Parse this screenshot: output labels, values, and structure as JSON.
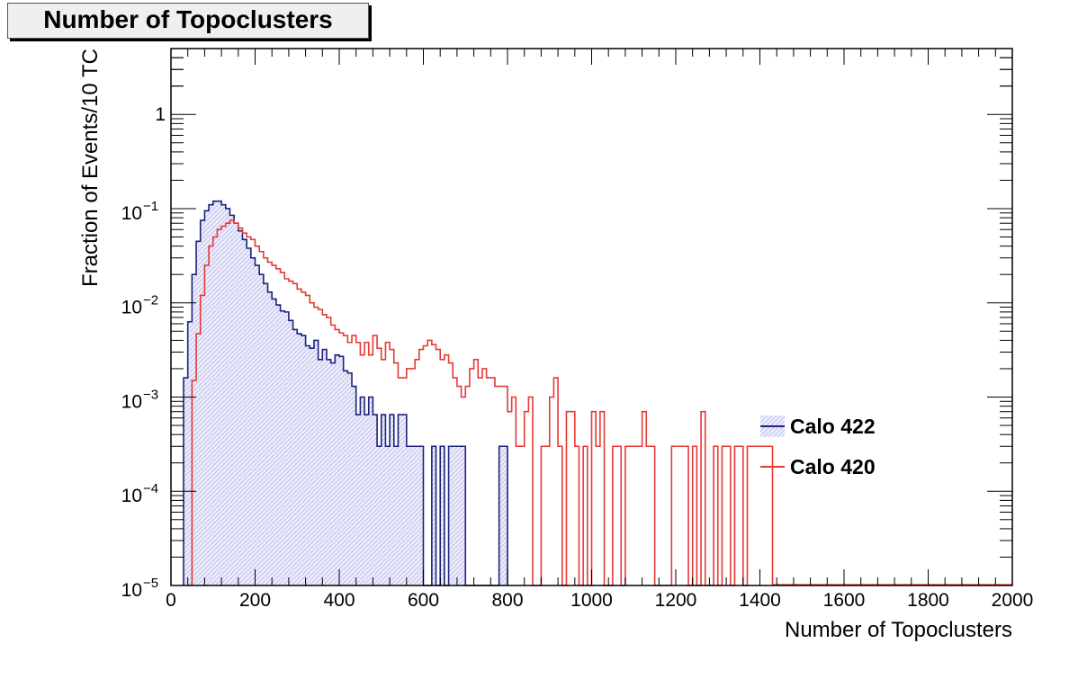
{
  "chart_data": {
    "type": "histogram",
    "title": "Number of Topoclusters",
    "xlabel": "Number of Topoclusters",
    "ylabel": "Fraction of Events/10 TC",
    "xlim": [
      0,
      2000
    ],
    "ylim": [
      1e-05,
      5
    ],
    "yscale": "log",
    "bin_width": 10,
    "grid": false,
    "legend_position": "right",
    "x_ticks": [
      0,
      200,
      400,
      600,
      800,
      1000,
      1200,
      1400,
      1600,
      1800,
      2000
    ],
    "y_ticks": [
      {
        "value": 1,
        "label": "1",
        "exp": ""
      },
      {
        "value": 0.1,
        "label": "10",
        "exp": "−1"
      },
      {
        "value": 0.01,
        "label": "10",
        "exp": "−2"
      },
      {
        "value": 0.001,
        "label": "10",
        "exp": "−3"
      },
      {
        "value": 0.0001,
        "label": "10",
        "exp": "−4"
      },
      {
        "value": 1e-05,
        "label": "10",
        "exp": "−5"
      }
    ],
    "series": [
      {
        "name": "Calo 422",
        "color": "#1a237e",
        "fill": "#dcdcf5",
        "x_start": 30,
        "values": [
          0.0016,
          0.0063,
          0.02,
          0.045,
          0.075,
          0.095,
          0.11,
          0.12,
          0.12,
          0.11,
          0.1,
          0.085,
          0.07,
          0.058,
          0.047,
          0.038,
          0.03,
          0.025,
          0.02,
          0.016,
          0.013,
          0.011,
          0.0095,
          0.0082,
          0.008,
          0.0065,
          0.0052,
          0.0047,
          0.0045,
          0.0035,
          0.0033,
          0.004,
          0.0025,
          0.0032,
          0.0025,
          0.0023,
          0.0028,
          0.0027,
          0.0019,
          0.0018,
          0.0013,
          0.00065,
          0.001,
          0.00065,
          0.001,
          0.00065,
          0.0003,
          0.00065,
          0.0003,
          0.00065,
          0.0003,
          0.00065,
          0.00065,
          0.0003,
          0.0003,
          0.0003,
          0.0003,
          1e-05,
          1e-05,
          0.0003,
          1e-05,
          0.0003,
          1e-05,
          0.0003,
          0.0003,
          0.0003,
          0.0003,
          1e-05,
          1e-05,
          1e-05,
          1e-05,
          1e-05,
          1e-05,
          1e-05,
          1e-05,
          0.0003,
          0.0003
        ]
      },
      {
        "name": "Calo 420",
        "color": "#e53935",
        "fill": "none",
        "x_start": 40,
        "values": [
          1e-05,
          0.0015,
          0.0047,
          0.012,
          0.025,
          0.04,
          0.05,
          0.06,
          0.065,
          0.07,
          0.075,
          0.07,
          0.062,
          0.055,
          0.05,
          0.047,
          0.04,
          0.035,
          0.03,
          0.027,
          0.025,
          0.023,
          0.021,
          0.018,
          0.017,
          0.016,
          0.014,
          0.013,
          0.012,
          0.01,
          0.009,
          0.0085,
          0.0075,
          0.007,
          0.0058,
          0.0052,
          0.0048,
          0.0045,
          0.0038,
          0.0045,
          0.0038,
          0.0028,
          0.0038,
          0.0028,
          0.0045,
          0.0033,
          0.0025,
          0.0038,
          0.0032,
          0.0023,
          0.0016,
          0.0016,
          0.002,
          0.002,
          0.0025,
          0.0032,
          0.0035,
          0.004,
          0.0036,
          0.0032,
          0.0025,
          0.0028,
          0.0023,
          0.0016,
          0.0013,
          0.001,
          0.0013,
          0.002,
          0.0025,
          0.0016,
          0.002,
          0.0016,
          0.0016,
          0.0013,
          0.0013,
          0.0013,
          0.0007,
          0.001,
          0.0003,
          0.0003,
          0.0007,
          0.001,
          1e-05,
          1e-05,
          0.0003,
          0.0003,
          0.001,
          0.0016,
          0.0003,
          1e-05,
          0.0007,
          0.0007,
          0.0003,
          1e-05,
          0.0003,
          1e-05,
          0.0007,
          0.0003,
          0.0007,
          1e-05,
          1e-05,
          0.0003,
          0.0003,
          1e-05,
          0.0003,
          0.0003,
          0.0003,
          0.0003,
          0.0007,
          0.0003,
          0.0003,
          1e-05,
          1e-05,
          1e-05,
          1e-05,
          0.0003,
          0.0003,
          0.0003,
          0.0003,
          1e-05,
          0.0003,
          1e-05,
          0.0007,
          1e-05,
          1e-05,
          0.0003,
          1e-05,
          0.0003,
          0.0003,
          1e-05,
          0.0003,
          0.0003,
          1e-05,
          0.0003,
          0.0003,
          0.0003,
          0.0003,
          0.0003,
          0.0003
        ]
      }
    ]
  }
}
